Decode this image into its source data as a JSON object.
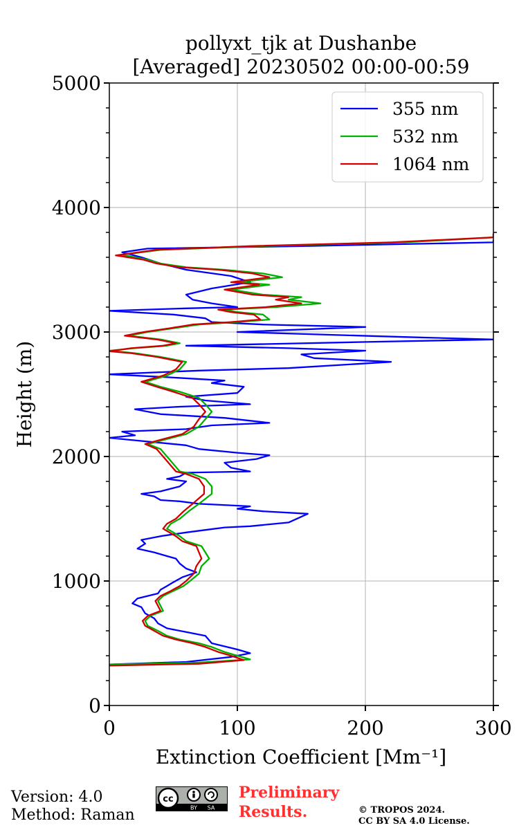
{
  "chart_data": {
    "type": "line",
    "title": [
      "pollyxt_tjk at Dushanbe",
      "[Averaged] 20230502 00:00-00:59"
    ],
    "xlabel": "Extinction Coefficient [Mm⁻¹]",
    "ylabel": "Height (m)",
    "xlim": [
      0,
      300
    ],
    "ylim": [
      0,
      5000
    ],
    "xticks": [
      0,
      100,
      200,
      300
    ],
    "yticks": [
      0,
      1000,
      2000,
      3000,
      4000,
      5000
    ],
    "grid": true,
    "legend_position": "top-right",
    "series": [
      {
        "name": "355 nm",
        "color": "#0000ff",
        "points": [
          [
            0,
            330
          ],
          [
            60,
            350
          ],
          [
            95,
            390
          ],
          [
            110,
            420
          ],
          [
            100,
            450
          ],
          [
            80,
            500
          ],
          [
            75,
            560
          ],
          [
            60,
            590
          ],
          [
            45,
            620
          ],
          [
            38,
            660
          ],
          [
            35,
            700
          ],
          [
            28,
            740
          ],
          [
            25,
            790
          ],
          [
            18,
            820
          ],
          [
            22,
            860
          ],
          [
            30,
            880
          ],
          [
            38,
            900
          ],
          [
            40,
            930
          ],
          [
            45,
            960
          ],
          [
            50,
            990
          ],
          [
            57,
            1030
          ],
          [
            68,
            1070
          ],
          [
            60,
            1100
          ],
          [
            55,
            1140
          ],
          [
            52,
            1180
          ],
          [
            45,
            1200
          ],
          [
            35,
            1230
          ],
          [
            22,
            1260
          ],
          [
            28,
            1300
          ],
          [
            25,
            1330
          ],
          [
            40,
            1360
          ],
          [
            60,
            1390
          ],
          [
            75,
            1410
          ],
          [
            90,
            1430
          ],
          [
            110,
            1440
          ],
          [
            140,
            1470
          ],
          [
            155,
            1540
          ],
          [
            120,
            1560
          ],
          [
            100,
            1580
          ],
          [
            110,
            1600
          ],
          [
            70,
            1620
          ],
          [
            55,
            1640
          ],
          [
            40,
            1650
          ],
          [
            35,
            1680
          ],
          [
            25,
            1700
          ],
          [
            40,
            1720
          ],
          [
            55,
            1760
          ],
          [
            60,
            1800
          ],
          [
            45,
            1820
          ],
          [
            55,
            1840
          ],
          [
            60,
            1870
          ],
          [
            110,
            1880
          ],
          [
            95,
            1910
          ],
          [
            90,
            1950
          ],
          [
            115,
            1980
          ],
          [
            125,
            2010
          ],
          [
            100,
            2030
          ],
          [
            70,
            2060
          ],
          [
            60,
            2090
          ],
          [
            40,
            2110
          ],
          [
            20,
            2130
          ],
          [
            0,
            2150
          ],
          [
            20,
            2170
          ],
          [
            10,
            2200
          ],
          [
            60,
            2220
          ],
          [
            80,
            2250
          ],
          [
            125,
            2270
          ],
          [
            90,
            2310
          ],
          [
            40,
            2340
          ],
          [
            20,
            2380
          ],
          [
            55,
            2400
          ],
          [
            110,
            2420
          ],
          [
            75,
            2450
          ],
          [
            60,
            2480
          ],
          [
            100,
            2510
          ],
          [
            105,
            2560
          ],
          [
            80,
            2590
          ],
          [
            90,
            2610
          ],
          [
            40,
            2640
          ],
          [
            0,
            2660
          ],
          [
            70,
            2690
          ],
          [
            140,
            2710
          ],
          [
            220,
            2760
          ],
          [
            160,
            2790
          ],
          [
            150,
            2820
          ],
          [
            200,
            2850
          ],
          [
            140,
            2870
          ],
          [
            60,
            2890
          ],
          [
            200,
            2920
          ],
          [
            300,
            2940
          ],
          [
            230,
            2960
          ],
          [
            100,
            3000
          ],
          [
            200,
            3040
          ],
          [
            120,
            3060
          ],
          [
            80,
            3080
          ],
          [
            75,
            3110
          ],
          [
            50,
            3140
          ],
          [
            0,
            3170
          ],
          [
            60,
            3190
          ],
          [
            100,
            3200
          ],
          [
            80,
            3230
          ],
          [
            65,
            3260
          ],
          [
            60,
            3300
          ],
          [
            80,
            3350
          ],
          [
            110,
            3400
          ],
          [
            95,
            3450
          ],
          [
            60,
            3500
          ],
          [
            40,
            3550
          ],
          [
            25,
            3600
          ],
          [
            10,
            3640
          ],
          [
            30,
            3670
          ],
          [
            150,
            3690
          ],
          [
            300,
            3720
          ],
          [
            300,
            3740
          ]
        ]
      },
      {
        "name": "532 nm",
        "color": "#00b000",
        "points": [
          [
            0,
            330
          ],
          [
            70,
            345
          ],
          [
            110,
            370
          ],
          [
            100,
            400
          ],
          [
            90,
            430
          ],
          [
            80,
            470
          ],
          [
            70,
            500
          ],
          [
            55,
            530
          ],
          [
            45,
            560
          ],
          [
            38,
            600
          ],
          [
            30,
            640
          ],
          [
            28,
            680
          ],
          [
            32,
            720
          ],
          [
            42,
            760
          ],
          [
            40,
            800
          ],
          [
            38,
            840
          ],
          [
            42,
            880
          ],
          [
            50,
            920
          ],
          [
            58,
            960
          ],
          [
            63,
            1000
          ],
          [
            70,
            1060
          ],
          [
            72,
            1120
          ],
          [
            78,
            1180
          ],
          [
            75,
            1230
          ],
          [
            72,
            1280
          ],
          [
            60,
            1320
          ],
          [
            55,
            1360
          ],
          [
            45,
            1420
          ],
          [
            48,
            1460
          ],
          [
            55,
            1500
          ],
          [
            62,
            1560
          ],
          [
            70,
            1620
          ],
          [
            80,
            1700
          ],
          [
            80,
            1760
          ],
          [
            75,
            1820
          ],
          [
            65,
            1860
          ],
          [
            55,
            1880
          ],
          [
            50,
            1940
          ],
          [
            45,
            2000
          ],
          [
            40,
            2060
          ],
          [
            30,
            2100
          ],
          [
            45,
            2140
          ],
          [
            60,
            2180
          ],
          [
            70,
            2240
          ],
          [
            75,
            2300
          ],
          [
            80,
            2360
          ],
          [
            75,
            2420
          ],
          [
            70,
            2470
          ],
          [
            55,
            2520
          ],
          [
            40,
            2560
          ],
          [
            28,
            2600
          ],
          [
            45,
            2650
          ],
          [
            55,
            2700
          ],
          [
            60,
            2760
          ],
          [
            40,
            2800
          ],
          [
            20,
            2830
          ],
          [
            0,
            2850
          ],
          [
            20,
            2870
          ],
          [
            45,
            2890
          ],
          [
            55,
            2910
          ],
          [
            40,
            2940
          ],
          [
            15,
            2970
          ],
          [
            30,
            3000
          ],
          [
            50,
            3030
          ],
          [
            70,
            3060
          ],
          [
            100,
            3080
          ],
          [
            125,
            3100
          ],
          [
            120,
            3140
          ],
          [
            100,
            3160
          ],
          [
            90,
            3180
          ],
          [
            130,
            3200
          ],
          [
            165,
            3230
          ],
          [
            140,
            3260
          ],
          [
            150,
            3280
          ],
          [
            120,
            3300
          ],
          [
            95,
            3340
          ],
          [
            125,
            3380
          ],
          [
            100,
            3400
          ],
          [
            135,
            3440
          ],
          [
            120,
            3470
          ],
          [
            90,
            3500
          ],
          [
            60,
            3520
          ],
          [
            40,
            3550
          ],
          [
            30,
            3580
          ],
          [
            10,
            3620
          ],
          [
            40,
            3660
          ],
          [
            120,
            3690
          ],
          [
            230,
            3720
          ],
          [
            300,
            3760
          ],
          [
            300,
            3790
          ]
        ]
      },
      {
        "name": "1064 nm",
        "color": "#d00000",
        "points": [
          [
            0,
            320
          ],
          [
            70,
            335
          ],
          [
            105,
            365
          ],
          [
            95,
            400
          ],
          [
            85,
            430
          ],
          [
            75,
            470
          ],
          [
            65,
            500
          ],
          [
            52,
            530
          ],
          [
            42,
            560
          ],
          [
            35,
            600
          ],
          [
            28,
            640
          ],
          [
            26,
            680
          ],
          [
            30,
            720
          ],
          [
            40,
            760
          ],
          [
            38,
            800
          ],
          [
            36,
            840
          ],
          [
            40,
            880
          ],
          [
            48,
            920
          ],
          [
            55,
            960
          ],
          [
            60,
            1000
          ],
          [
            66,
            1060
          ],
          [
            68,
            1120
          ],
          [
            72,
            1180
          ],
          [
            70,
            1230
          ],
          [
            68,
            1280
          ],
          [
            57,
            1320
          ],
          [
            52,
            1360
          ],
          [
            42,
            1420
          ],
          [
            45,
            1460
          ],
          [
            52,
            1500
          ],
          [
            58,
            1560
          ],
          [
            65,
            1620
          ],
          [
            74,
            1700
          ],
          [
            74,
            1760
          ],
          [
            70,
            1820
          ],
          [
            60,
            1860
          ],
          [
            52,
            1880
          ],
          [
            47,
            1940
          ],
          [
            42,
            2000
          ],
          [
            37,
            2060
          ],
          [
            28,
            2100
          ],
          [
            42,
            2140
          ],
          [
            57,
            2180
          ],
          [
            66,
            2240
          ],
          [
            70,
            2300
          ],
          [
            75,
            2360
          ],
          [
            70,
            2420
          ],
          [
            65,
            2470
          ],
          [
            50,
            2520
          ],
          [
            37,
            2560
          ],
          [
            25,
            2600
          ],
          [
            42,
            2650
          ],
          [
            52,
            2700
          ],
          [
            57,
            2760
          ],
          [
            37,
            2800
          ],
          [
            17,
            2830
          ],
          [
            0,
            2845
          ],
          [
            17,
            2870
          ],
          [
            42,
            2890
          ],
          [
            52,
            2910
          ],
          [
            37,
            2940
          ],
          [
            12,
            2970
          ],
          [
            27,
            3000
          ],
          [
            47,
            3030
          ],
          [
            65,
            3060
          ],
          [
            95,
            3080
          ],
          [
            118,
            3100
          ],
          [
            113,
            3140
          ],
          [
            95,
            3160
          ],
          [
            85,
            3180
          ],
          [
            122,
            3200
          ],
          [
            150,
            3230
          ],
          [
            130,
            3260
          ],
          [
            140,
            3280
          ],
          [
            112,
            3300
          ],
          [
            90,
            3340
          ],
          [
            117,
            3380
          ],
          [
            95,
            3400
          ],
          [
            125,
            3440
          ],
          [
            112,
            3470
          ],
          [
            85,
            3500
          ],
          [
            55,
            3520
          ],
          [
            37,
            3550
          ],
          [
            27,
            3580
          ],
          [
            5,
            3615
          ],
          [
            37,
            3660
          ],
          [
            110,
            3690
          ],
          [
            220,
            3720
          ],
          [
            300,
            3760
          ],
          [
            300,
            3790
          ]
        ]
      }
    ]
  },
  "footer": {
    "version": "Version: 4.0",
    "method": "Method: Raman",
    "cc_label": "cc",
    "by_label": "BY",
    "sa_label": "SA",
    "preliminary_line1": "Preliminary",
    "preliminary_line2": "Results.",
    "copyright_line1": "© TROPOS 2024.",
    "copyright_line2": "CC BY SA 4.0 License."
  }
}
